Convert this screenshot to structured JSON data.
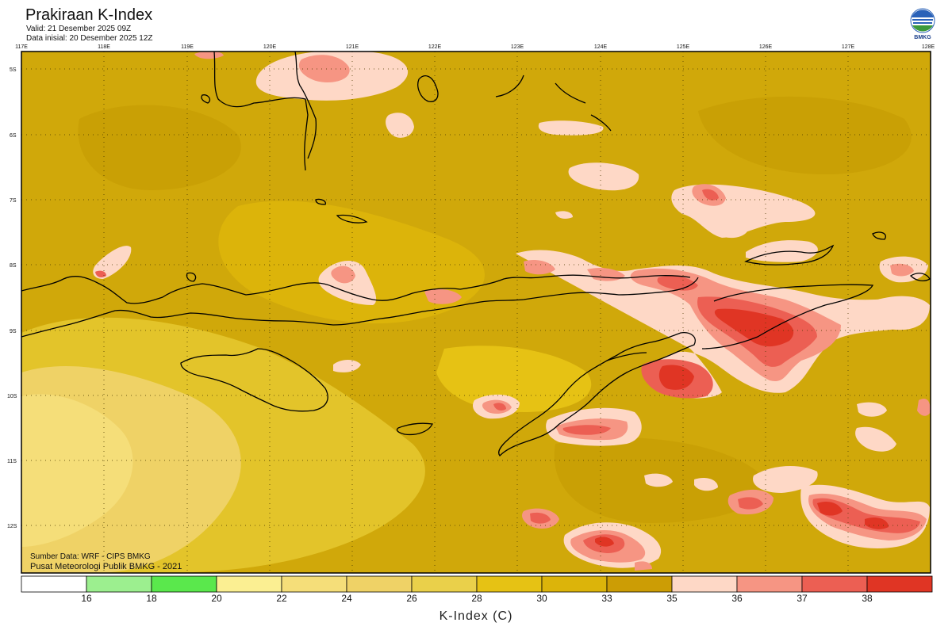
{
  "header": {
    "title": "Prakiraan K-Index",
    "valid": "Valid: 21 Desember 2025 09Z",
    "initial": "Data inisial: 20 Desember 2025 12Z",
    "logo_text": "BMKG"
  },
  "axes": {
    "lon_ticks": [
      "117E",
      "118E",
      "119E",
      "120E",
      "121E",
      "122E",
      "123E",
      "124E",
      "125E",
      "126E",
      "127E",
      "128E"
    ],
    "lat_ticks": [
      "5S",
      "6S",
      "7S",
      "8S",
      "9S",
      "10S",
      "11S",
      "12S"
    ]
  },
  "colorbar": {
    "title": "K-Index (C)",
    "tick_labels": [
      "16",
      "18",
      "20",
      "22",
      "24",
      "26",
      "28",
      "30",
      "33",
      "35",
      "36",
      "37",
      "38"
    ],
    "colors": [
      "#ffffff",
      "#9cef8f",
      "#5ae84c",
      "#fbef92",
      "#f5de79",
      "#efd266",
      "#ead04a",
      "#e6c214",
      "#dcb40a",
      "#cc9d05",
      "#fed8c6",
      "#f69583",
      "#ec5f53",
      "#e03524"
    ]
  },
  "credits": {
    "line1": "Sumber Data: WRF - CIPS BMKG",
    "line2": "Pusat Meteorologi Publik BMKG - 2021"
  },
  "map": {
    "background_color": "#d0a80a",
    "land_line_color": "#000000",
    "gridlines": "dotted"
  }
}
